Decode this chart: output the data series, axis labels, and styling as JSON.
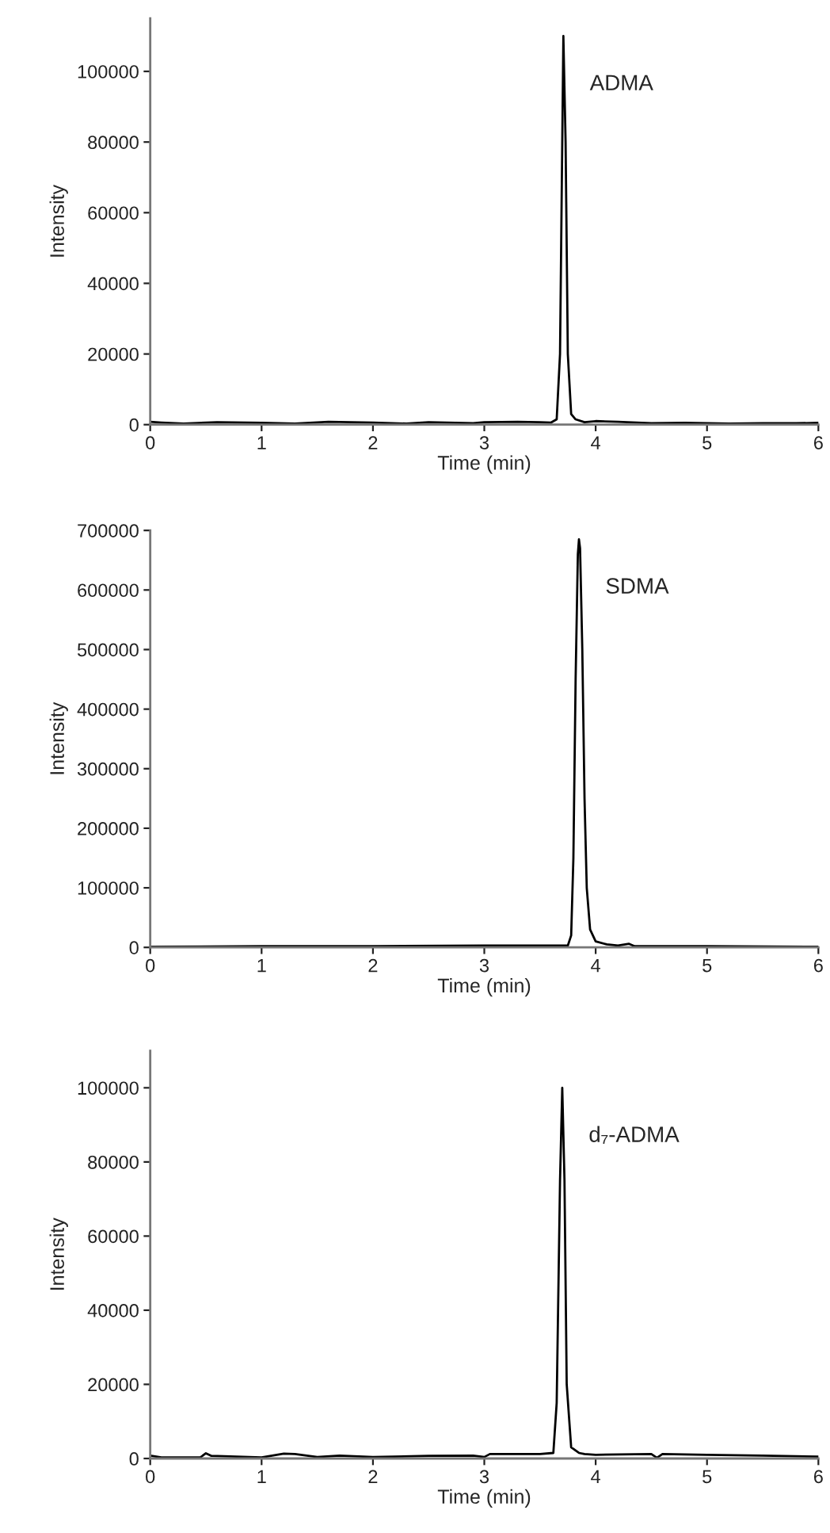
{
  "chart_data": [
    {
      "type": "line",
      "xlabel": "Time (min)",
      "ylabel": "Intensity",
      "annotations": [
        "ADMA"
      ],
      "grid": false,
      "xlim": [
        0,
        6
      ],
      "xticks": [
        0,
        1,
        2,
        3,
        4,
        5,
        6
      ],
      "ylim": [
        0,
        115000
      ],
      "yticks": [
        0,
        20000,
        40000,
        60000,
        80000,
        100000
      ],
      "series": [
        {
          "color": "#000000",
          "x": [
            0,
            0.1,
            0.3,
            0.6,
            1.0,
            1.3,
            1.6,
            2.0,
            2.3,
            2.5,
            2.9,
            3.0,
            3.3,
            3.5,
            3.6,
            3.65,
            3.68,
            3.7,
            3.71,
            3.73,
            3.75,
            3.78,
            3.82,
            3.9,
            4.0,
            4.2,
            4.5,
            4.8,
            5.2,
            5.5,
            5.8,
            6.0
          ],
          "values": [
            800,
            600,
            300,
            700,
            500,
            300,
            800,
            600,
            300,
            700,
            400,
            700,
            800,
            700,
            600,
            1500,
            20000,
            80000,
            110000,
            80000,
            20000,
            3000,
            1500,
            700,
            1000,
            800,
            400,
            500,
            300,
            400,
            400,
            500
          ]
        }
      ]
    },
    {
      "type": "line",
      "xlabel": "Time (min)",
      "ylabel": "Intensity",
      "annotations": [
        "SDMA"
      ],
      "grid": false,
      "xlim": [
        0,
        6
      ],
      "xticks": [
        0,
        1,
        2,
        3,
        4,
        5,
        6
      ],
      "ylim": [
        0,
        700000
      ],
      "yticks": [
        0,
        100000,
        200000,
        300000,
        400000,
        500000,
        600000,
        700000
      ],
      "series": [
        {
          "color": "#000000",
          "x": [
            0,
            1,
            2,
            3,
            3.5,
            3.75,
            3.78,
            3.8,
            3.82,
            3.84,
            3.85,
            3.86,
            3.88,
            3.9,
            3.92,
            3.95,
            4.0,
            4.1,
            4.2,
            4.3,
            4.35,
            5,
            6
          ],
          "values": [
            1000,
            2000,
            2000,
            3000,
            3000,
            3000,
            20000,
            150000,
            450000,
            660000,
            685000,
            670000,
            500000,
            250000,
            100000,
            30000,
            10000,
            5000,
            3000,
            6000,
            2000,
            2000,
            1000
          ]
        }
      ]
    },
    {
      "type": "line",
      "xlabel": "Time (min)",
      "ylabel": "Intensity",
      "annotations": [
        "d₇-ADMA"
      ],
      "grid": false,
      "xlim": [
        0,
        6
      ],
      "xticks": [
        0,
        1,
        2,
        3,
        4,
        5,
        6
      ],
      "ylim": [
        0,
        110000
      ],
      "yticks": [
        0,
        20000,
        40000,
        60000,
        80000,
        100000
      ],
      "series": [
        {
          "color": "#000000",
          "x": [
            0,
            0.1,
            0.45,
            0.5,
            0.55,
            1.0,
            1.2,
            1.3,
            1.5,
            1.7,
            2.0,
            2.5,
            2.9,
            3.0,
            3.05,
            3.5,
            3.62,
            3.65,
            3.68,
            3.7,
            3.72,
            3.74,
            3.78,
            3.85,
            3.9,
            4.0,
            4.5,
            4.55,
            4.6,
            5.0,
            5.5,
            6.0
          ],
          "values": [
            800,
            300,
            300,
            1400,
            700,
            300,
            1300,
            1200,
            400,
            800,
            400,
            700,
            800,
            400,
            1200,
            1200,
            1500,
            15000,
            75000,
            100000,
            75000,
            20000,
            3000,
            1500,
            1200,
            1000,
            1200,
            200,
            1200,
            1000,
            800,
            500
          ]
        }
      ]
    }
  ]
}
